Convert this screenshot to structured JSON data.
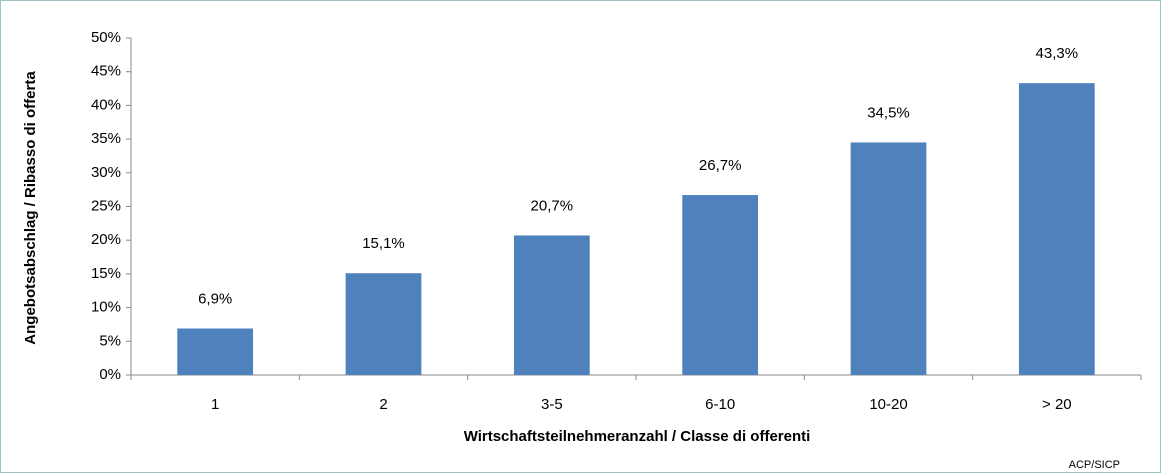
{
  "chart_data": {
    "type": "bar",
    "x_label": "Wirtschaftsteilnehmeranzahl / Classe di offerenti",
    "y_label": "Angebotsabschlag / Ribasso di offerta",
    "source": "ACP/SICP",
    "categories": [
      "1",
      "2",
      "3-5",
      "6-10",
      "10-20",
      "> 20"
    ],
    "values": [
      6.9,
      15.1,
      20.7,
      26.7,
      34.5,
      43.3
    ],
    "value_labels": [
      "6,9%",
      "15,1%",
      "20,7%",
      "26,7%",
      "34,5%",
      "43,3%"
    ],
    "color": "#4f81bd",
    "ylim": [
      0,
      50
    ],
    "yticks": [
      {
        "value": 0,
        "label": "0%"
      },
      {
        "value": 5,
        "label": "5%"
      },
      {
        "value": 10,
        "label": "10%"
      },
      {
        "value": 15,
        "label": "15%"
      },
      {
        "value": 20,
        "label": "20%"
      },
      {
        "value": 25,
        "label": "25%"
      },
      {
        "value": 30,
        "label": "30%"
      },
      {
        "value": 35,
        "label": "35%"
      },
      {
        "value": 40,
        "label": "40%"
      },
      {
        "value": 45,
        "label": "45%"
      },
      {
        "value": 50,
        "label": "50%"
      }
    ],
    "grid": false
  }
}
